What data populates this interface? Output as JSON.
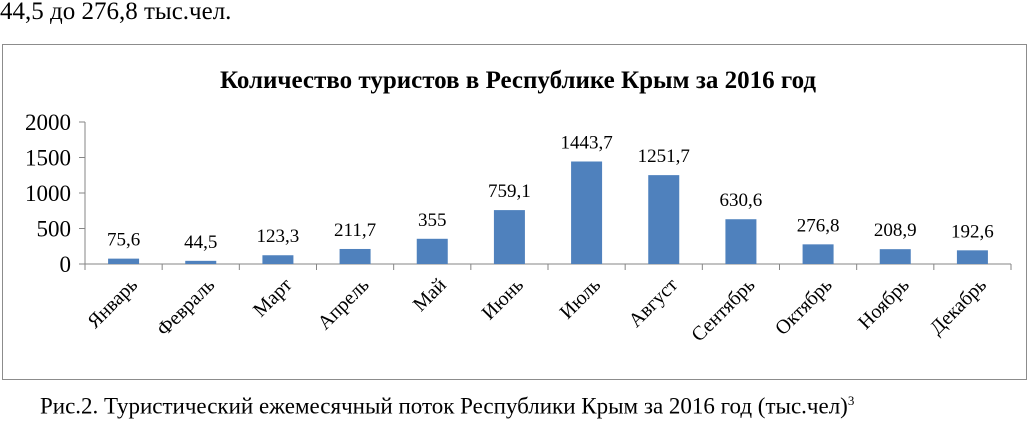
{
  "top_text": "44,5 до 276,8 тыс.чел.",
  "caption": {
    "text": "Рис.2. Туристический ежемесячный поток Республики Крым за 2016 год (тыс.чел)",
    "footnote": "3"
  },
  "colors": {
    "bar": "#4f81bd",
    "axis": "#868686"
  },
  "chart_data": {
    "type": "bar",
    "title": "Количество туристов в Республике Крым за 2016 год",
    "xlabel": "",
    "ylabel": "",
    "ylim": [
      0,
      2000
    ],
    "yticks": [
      "0",
      "500",
      "1000",
      "1500",
      "2000"
    ],
    "grid": false,
    "legend": "none",
    "categories": [
      "Январь",
      "Февраль",
      "Март",
      "Апрель",
      "Май",
      "Июнь",
      "Июль",
      "Август",
      "Сентябрь",
      "Октябрь",
      "Ноябрь",
      "Декабрь"
    ],
    "values": [
      75.6,
      44.5,
      123.3,
      211.7,
      355,
      759.1,
      1443.7,
      1251.7,
      630.6,
      276.8,
      208.9,
      192.6
    ],
    "value_labels": [
      "75,6",
      "44,5",
      "123,3",
      "211,7",
      "355",
      "759,1",
      "1443,7",
      "1251,7",
      "630,6",
      "276,8",
      "208,9",
      "192,6"
    ]
  }
}
